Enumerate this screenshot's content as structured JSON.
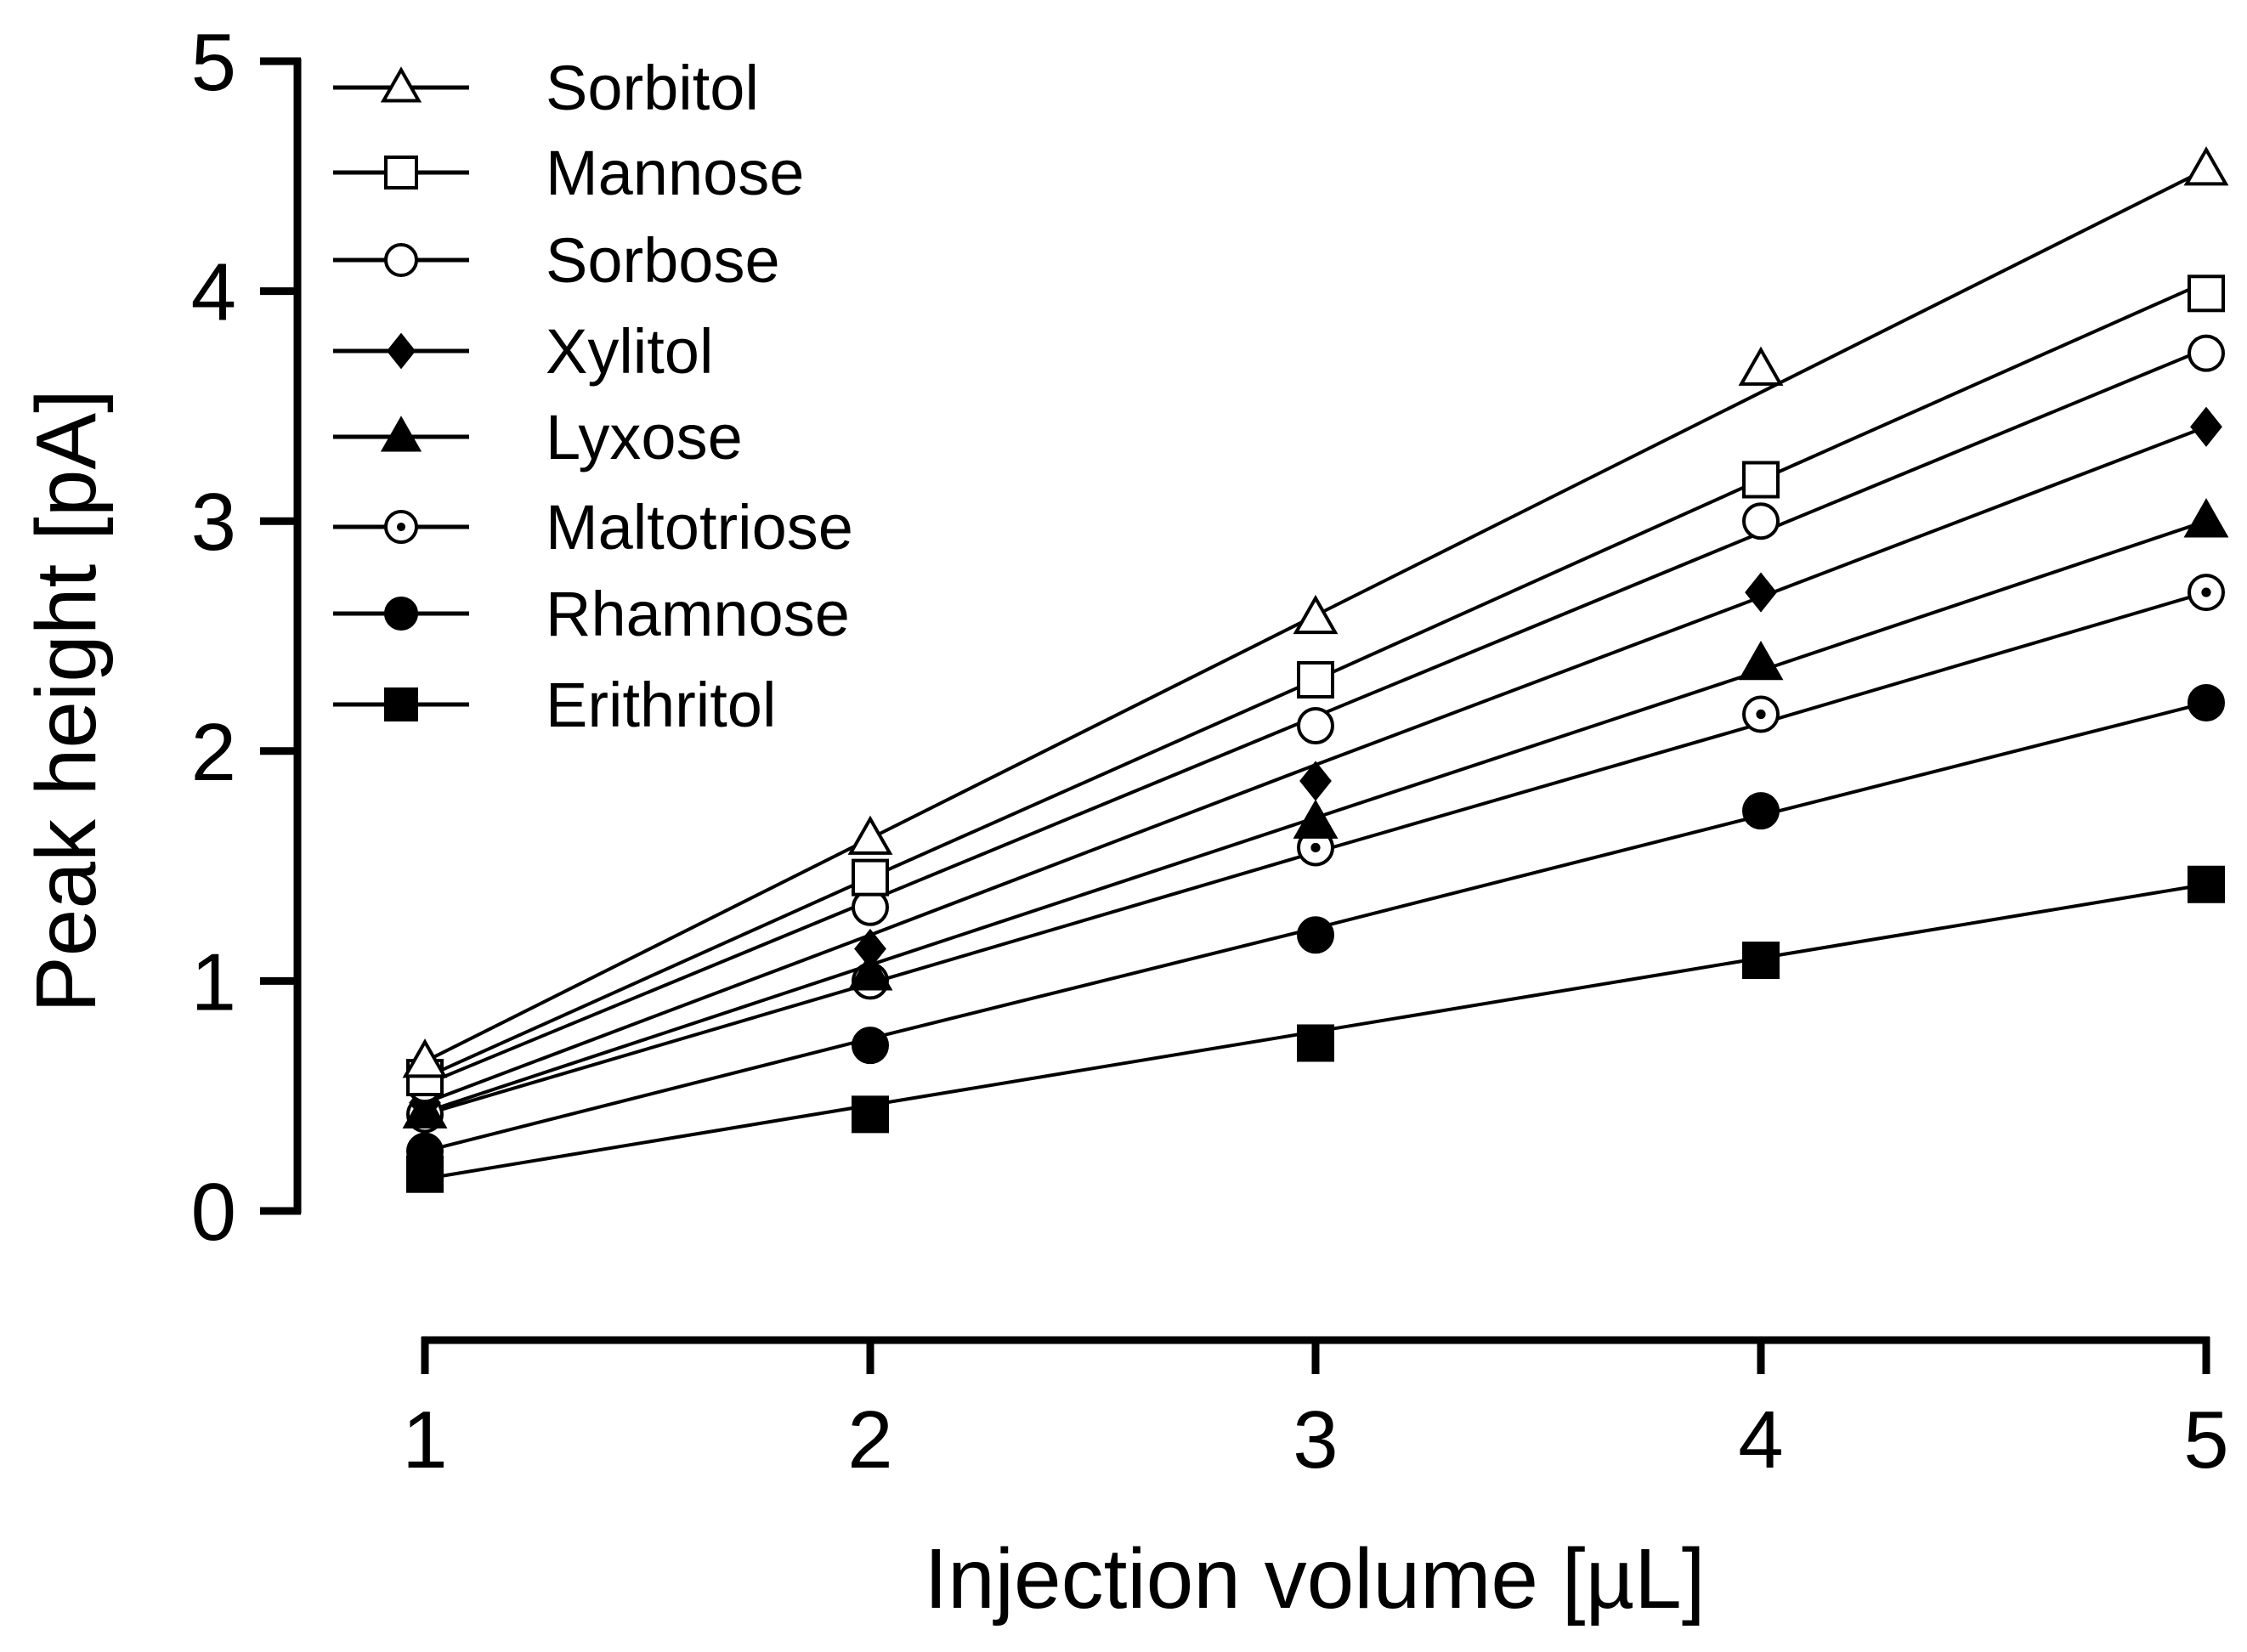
{
  "chart_data": {
    "type": "line",
    "title": "",
    "xlabel": "Injection volume [µL]",
    "ylabel": "Peak height [pA]",
    "x": [
      1,
      2,
      3,
      4,
      5
    ],
    "x_ticks": [
      "1",
      "2",
      "3",
      "4",
      "5"
    ],
    "y_ticks": [
      "0",
      "1",
      "2",
      "3",
      "4",
      "5"
    ],
    "xlim": [
      1,
      5
    ],
    "ylim": [
      0,
      5
    ],
    "grid": false,
    "legend_position": "top-left",
    "series": [
      {
        "name": "Sorbitol",
        "marker": "triangle-open",
        "values": [
          0.65,
          1.62,
          2.58,
          3.66,
          4.53
        ],
        "fit": [
          0.65,
          1.62,
          2.59,
          3.56,
          4.53
        ]
      },
      {
        "name": "Mannose",
        "marker": "square-open",
        "values": [
          0.58,
          1.45,
          2.31,
          3.18,
          3.99
        ],
        "fit": [
          0.58,
          1.45,
          2.31,
          3.18,
          4.04
        ]
      },
      {
        "name": "Sorbose",
        "marker": "circle-open",
        "values": [
          0.55,
          1.32,
          2.11,
          3.0,
          3.73
        ],
        "fit": [
          0.55,
          1.35,
          2.15,
          2.95,
          3.75
        ]
      },
      {
        "name": "Xylitol",
        "marker": "diamond-filled",
        "values": [
          0.47,
          1.14,
          1.87,
          2.69,
          3.41
        ],
        "fit": [
          0.47,
          1.2,
          1.94,
          2.67,
          3.41
        ]
      },
      {
        "name": "Lyxose",
        "marker": "triangle-filled",
        "values": [
          0.43,
          1.03,
          1.69,
          2.38,
          3.0
        ],
        "fit": [
          0.43,
          1.07,
          1.71,
          2.35,
          3.0
        ]
      },
      {
        "name": "Maltotriose",
        "marker": "circle-dot",
        "values": [
          0.42,
          1.0,
          1.58,
          2.16,
          2.69
        ],
        "fit": [
          0.42,
          0.99,
          1.56,
          2.12,
          2.69
        ]
      },
      {
        "name": "Rhamnose",
        "marker": "circle-filled",
        "values": [
          0.26,
          0.72,
          1.2,
          1.74,
          2.21
        ],
        "fit": [
          0.26,
          0.75,
          1.23,
          1.72,
          2.21
        ]
      },
      {
        "name": "Erithritol",
        "marker": "square-filled",
        "values": [
          0.16,
          0.42,
          0.73,
          1.09,
          1.42
        ],
        "fit": [
          0.14,
          0.46,
          0.78,
          1.1,
          1.42
        ]
      }
    ]
  }
}
